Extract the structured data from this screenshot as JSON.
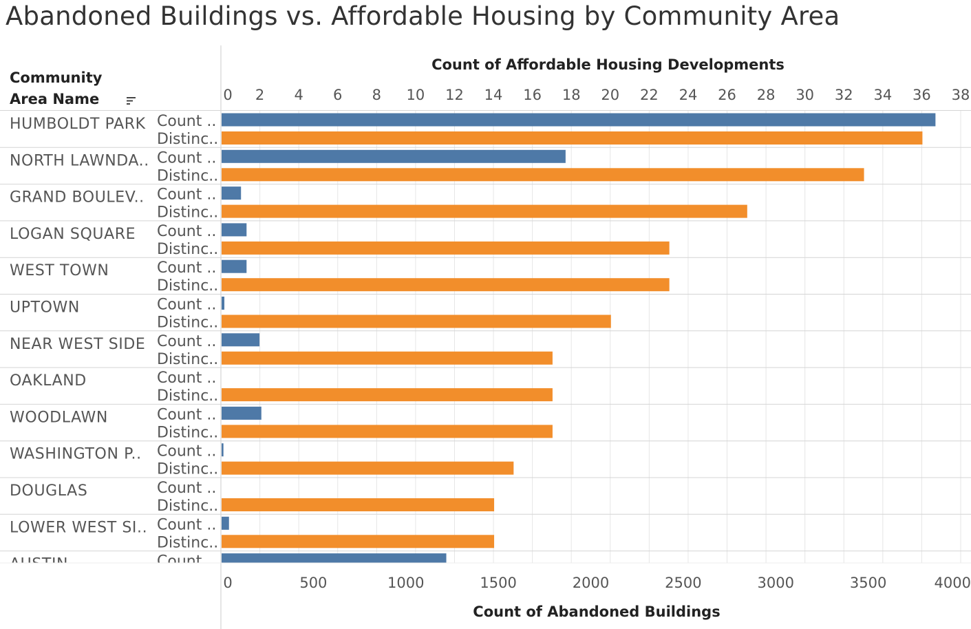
{
  "title": "Abandoned Buildings vs. Affordable Housing by Community Area",
  "row_header": "Community Area Name",
  "sort_icon": "sort-descending-icon",
  "colors": {
    "count_series": "#4e79a7",
    "distinct_series": "#f28e2b",
    "grid": "#e6e6e6",
    "divider": "#d4d4d4"
  },
  "chart_data": {
    "type": "bar",
    "orientation": "horizontal",
    "dual_axis": true,
    "categories": [
      "HUMBOLDT PARK",
      "NORTH LAWNDA..",
      "GRAND BOULEV..",
      "LOGAN SQUARE",
      "WEST TOWN",
      "UPTOWN",
      "NEAR WEST SIDE",
      "OAKLAND",
      "WOODLAWN",
      "WASHINGTON P..",
      "DOUGLAS",
      "LOWER WEST SI..",
      "AUSTIN"
    ],
    "measure_labels": [
      "Count ..",
      "Distinc.."
    ],
    "series": [
      {
        "name": "Count ..",
        "axis": "bottom",
        "values": [
          3860,
          1860,
          105,
          135,
          135,
          15,
          205,
          0,
          215,
          10,
          0,
          40,
          1215
        ]
      },
      {
        "name": "Distinc..",
        "axis": "top",
        "values": [
          36,
          33,
          27,
          23,
          23,
          20,
          17,
          17,
          17,
          15,
          14,
          14,
          null
        ]
      }
    ],
    "top_axis": {
      "label": "Count of Affordable Housing Developments",
      "range": [
        0,
        38
      ],
      "ticks": [
        0,
        2,
        4,
        6,
        8,
        10,
        12,
        14,
        16,
        18,
        20,
        22,
        24,
        26,
        28,
        30,
        32,
        34,
        36,
        38
      ]
    },
    "bottom_axis": {
      "label": "Count of Abandoned Buildings",
      "range": [
        0,
        4000
      ],
      "ticks": [
        0,
        500,
        1000,
        1500,
        2000,
        2500,
        3000,
        3500,
        4000
      ]
    },
    "grid": true
  }
}
